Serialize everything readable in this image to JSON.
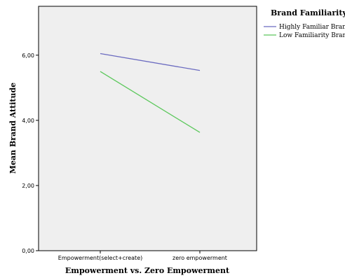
{
  "chart_data": {
    "type": "line",
    "xlabel": "Empowerment vs. Zero Empowerment",
    "ylabel": "Mean Brand Attitude",
    "categories": [
      "Empowerment(select+create)",
      "zero empowerment"
    ],
    "ylim": [
      0,
      7.5
    ],
    "yticks": [
      0,
      2,
      4,
      6
    ],
    "ytick_labels": [
      "0,00",
      "2,00",
      "4,00",
      "6,00"
    ],
    "grid": false,
    "legend": {
      "title": "Brand Familiarity",
      "placement": "top-right outside plot"
    },
    "series": [
      {
        "name": "Highly Familiar Brand",
        "values": [
          6.05,
          5.53
        ],
        "color": "#6b6bc0"
      },
      {
        "name": "Low Familiarity Brand",
        "values": [
          5.5,
          3.63
        ],
        "color": "#5cc85c"
      }
    ],
    "plot_background": "#efefef"
  }
}
